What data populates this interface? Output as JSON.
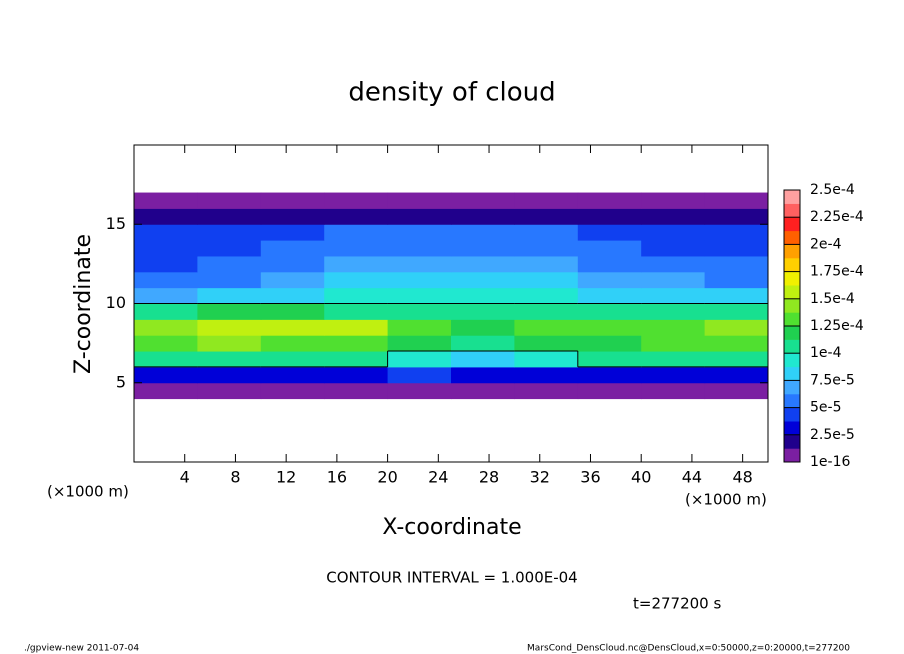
{
  "chart_data": {
    "type": "heatmap",
    "title": "density of cloud",
    "x_label": "X-coordinate",
    "y_label": "Z-coordinate",
    "x_unit_left": "(×1000 m)",
    "x_unit_right": "(×1000 m)",
    "contour_interval": {
      "value": 0.0001,
      "label": "CONTOUR INTERVAL = 1.000E-04"
    },
    "time_label": "t=277200 s",
    "footer_left": "./gpview-new  2011-07-04",
    "footer_right": "MarsCond_DensCloud.nc@DensCloud,x=0:50000,z=0:20000,t=277200",
    "xlim": [
      0,
      50
    ],
    "ylim": [
      0,
      20
    ],
    "xticks": [
      4,
      8,
      12,
      16,
      20,
      24,
      28,
      32,
      36,
      40,
      44,
      48
    ],
    "yticks": [
      5,
      10,
      15
    ],
    "x": [
      0,
      5,
      10,
      15,
      20,
      25,
      30,
      35,
      40,
      45,
      50
    ],
    "y": [
      0,
      1,
      2,
      3,
      4,
      5,
      6,
      7,
      8,
      9,
      10,
      11,
      12,
      13,
      14,
      15,
      16,
      17,
      18,
      19,
      20
    ],
    "values": [
      [
        null,
        null,
        null,
        null,
        null,
        null,
        null,
        null,
        null,
        null
      ],
      [
        null,
        null,
        null,
        null,
        null,
        null,
        null,
        null,
        null,
        null
      ],
      [
        null,
        null,
        null,
        null,
        null,
        null,
        null,
        null,
        null,
        null
      ],
      [
        null,
        null,
        null,
        null,
        null,
        null,
        null,
        null,
        null,
        null
      ],
      [
        1e-06,
        1e-06,
        1e-06,
        1e-06,
        1e-06,
        1e-06,
        1e-06,
        1e-06,
        1e-06,
        1e-06
      ],
      [
        3e-05,
        3.5e-05,
        3e-05,
        3e-05,
        4e-05,
        3e-05,
        2.5e-05,
        3e-05,
        3.5e-05,
        3e-05
      ],
      [
        0.000105,
        0.00011,
        0.00011,
        0.000105,
        9.5e-05,
        8.5e-05,
        9e-05,
        0.0001,
        0.000105,
        0.00011
      ],
      [
        0.00013,
        0.00014,
        0.000135,
        0.00013,
        0.00012,
        0.00011,
        0.000115,
        0.00012,
        0.000125,
        0.00013
      ],
      [
        0.000145,
        0.00016,
        0.000155,
        0.00015,
        0.00013,
        0.00012,
        0.000125,
        0.00013,
        0.000135,
        0.00014
      ],
      [
        0.00011,
        0.00012,
        0.000115,
        0.00011,
        0.000105,
        0.000105,
        0.00011,
        0.00011,
        0.00011,
        0.000105
      ],
      [
        7e-05,
        7.5e-05,
        8e-05,
        9e-05,
        9.5e-05,
        9.5e-05,
        9e-05,
        8.5e-05,
        8e-05,
        7.5e-05
      ],
      [
        5.5e-05,
        6e-05,
        6.5e-05,
        8e-05,
        8.5e-05,
        8.5e-05,
        8e-05,
        7e-05,
        6.5e-05,
        6e-05
      ],
      [
        4.5e-05,
        5e-05,
        5.5e-05,
        6.5e-05,
        7e-05,
        7e-05,
        6.5e-05,
        6e-05,
        5.5e-05,
        5e-05
      ],
      [
        4e-05,
        4.5e-05,
        5e-05,
        5.5e-05,
        6e-05,
        6e-05,
        5.5e-05,
        5e-05,
        4.5e-05,
        4.5e-05
      ],
      [
        4e-05,
        4.5e-05,
        4.5e-05,
        5e-05,
        5e-05,
        5e-05,
        5e-05,
        4.5e-05,
        4.5e-05,
        4e-05
      ],
      [
        1.5e-05,
        1.5e-05,
        1.5e-05,
        1.5e-05,
        1.5e-05,
        1.5e-05,
        1.5e-05,
        1.5e-05,
        1.5e-05,
        1.5e-05
      ],
      [
        5e-06,
        5e-06,
        5e-06,
        5e-06,
        5e-06,
        5e-06,
        5e-06,
        5e-06,
        5e-06,
        5e-06
      ],
      [
        null,
        null,
        null,
        null,
        null,
        null,
        null,
        null,
        null,
        null
      ],
      [
        null,
        null,
        null,
        null,
        null,
        null,
        null,
        null,
        null,
        null
      ],
      [
        null,
        null,
        null,
        null,
        null,
        null,
        null,
        null,
        null,
        null
      ]
    ],
    "colorbar_ticks": [
      {
        "value": 1e-16,
        "label": "1e-16"
      },
      {
        "value": 2.5e-05,
        "label": "2.5e-5"
      },
      {
        "value": 5e-05,
        "label": "5e-5"
      },
      {
        "value": 7.5e-05,
        "label": "7.5e-5"
      },
      {
        "value": 0.0001,
        "label": "1e-4"
      },
      {
        "value": 0.000125,
        "label": "1.25e-4"
      },
      {
        "value": 0.00015,
        "label": "1.5e-4"
      },
      {
        "value": 0.000175,
        "label": "1.75e-4"
      },
      {
        "value": 0.0002,
        "label": "2e-4"
      },
      {
        "value": 0.000225,
        "label": "2.25e-4"
      },
      {
        "value": 0.00025,
        "label": "2.5e-4"
      }
    ],
    "colors": [
      "#7b1fa2",
      "#20008c",
      "#0000d8",
      "#1040f0",
      "#2878ff",
      "#40a8ff",
      "#30d0f8",
      "#20e8d0",
      "#18e090",
      "#20d050",
      "#50e030",
      "#90e820",
      "#c0f010",
      "#f0f000",
      "#ffd000",
      "#ffa000",
      "#ff6000",
      "#ff2020",
      "#ff6060",
      "#ffa0a0"
    ]
  }
}
